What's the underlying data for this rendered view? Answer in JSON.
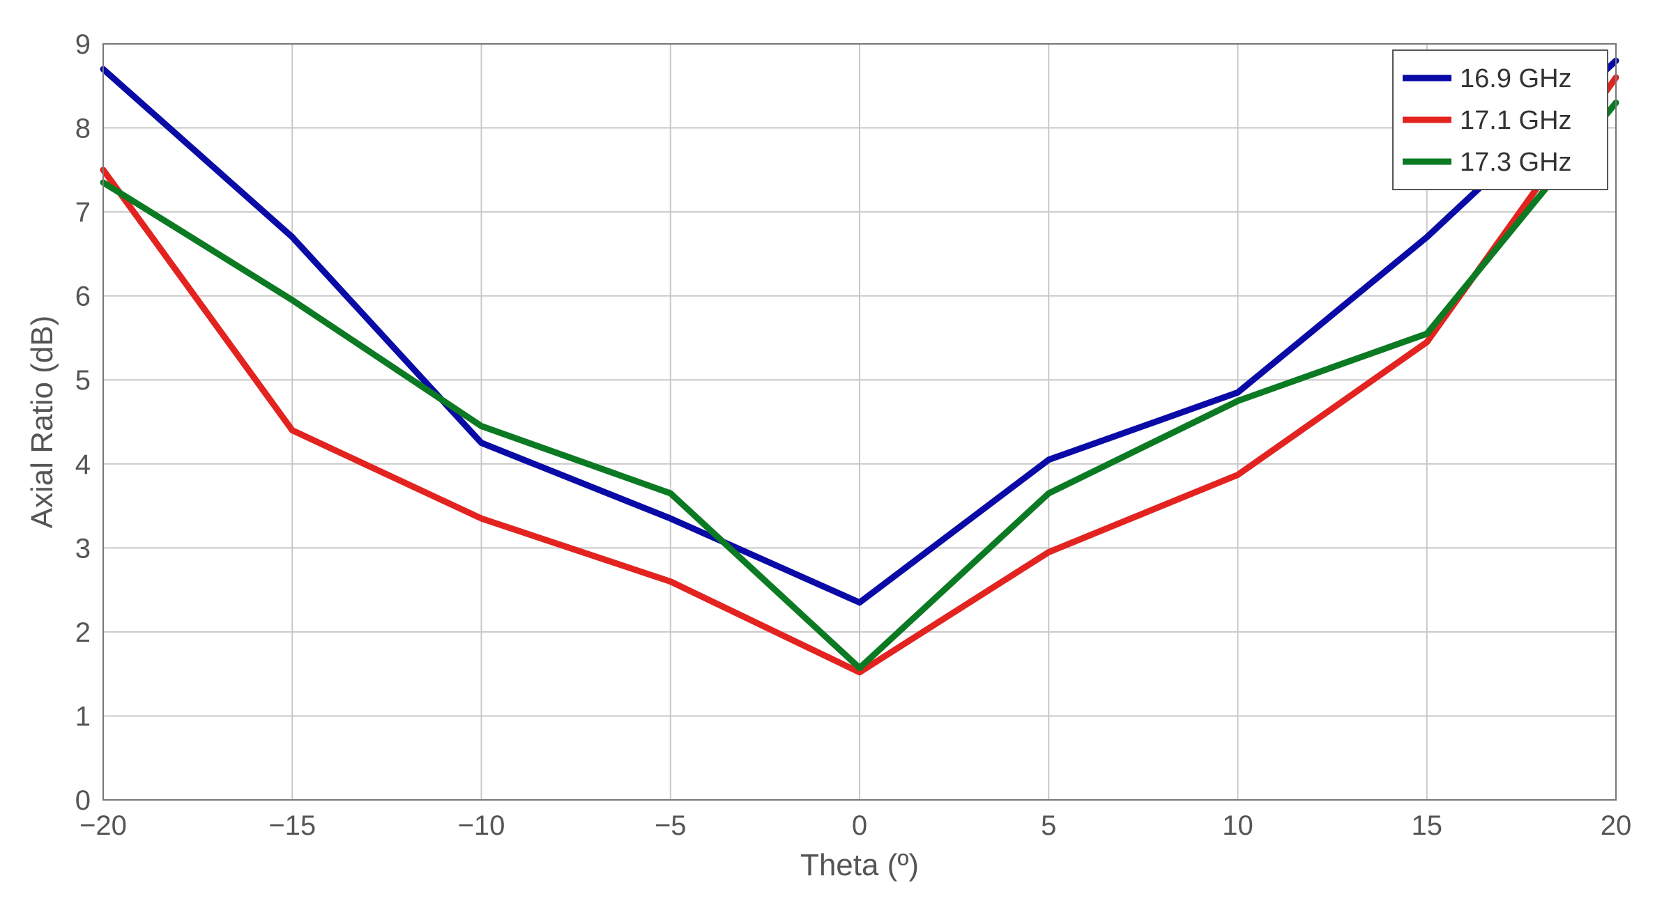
{
  "chart_data": {
    "type": "line",
    "title": "",
    "xlabel": "Theta (º)",
    "ylabel": "Axial Ratio (dB)",
    "xlim": [
      -20,
      20
    ],
    "ylim": [
      0,
      9
    ],
    "xticks": [
      -20,
      -15,
      -10,
      -5,
      0,
      5,
      10,
      15,
      20
    ],
    "yticks": [
      0,
      1,
      2,
      3,
      4,
      5,
      6,
      7,
      8,
      9
    ],
    "xtick_labels": [
      "−20",
      "−15",
      "−10",
      "−5",
      "0",
      "5",
      "10",
      "15",
      "20"
    ],
    "ytick_labels": [
      "0",
      "1",
      "2",
      "3",
      "4",
      "5",
      "6",
      "7",
      "8",
      "9"
    ],
    "grid": true,
    "legend_position": "top-right",
    "x": [
      -20,
      -15,
      -10,
      -5,
      0,
      5,
      10,
      15,
      20
    ],
    "series": [
      {
        "name": "16.9 GHz",
        "color": "#0a0aa6",
        "values": [
          8.7,
          6.7,
          4.25,
          3.35,
          2.35,
          4.05,
          4.85,
          6.7,
          8.8
        ]
      },
      {
        "name": "17.1 GHz",
        "color": "#e3231f",
        "values": [
          7.5,
          4.4,
          3.35,
          2.6,
          1.52,
          2.95,
          3.87,
          5.45,
          8.6
        ]
      },
      {
        "name": "17.3 GHz",
        "color": "#0b7a22",
        "values": [
          7.35,
          5.95,
          4.45,
          3.65,
          1.57,
          3.65,
          4.75,
          5.55,
          8.3
        ]
      }
    ]
  }
}
